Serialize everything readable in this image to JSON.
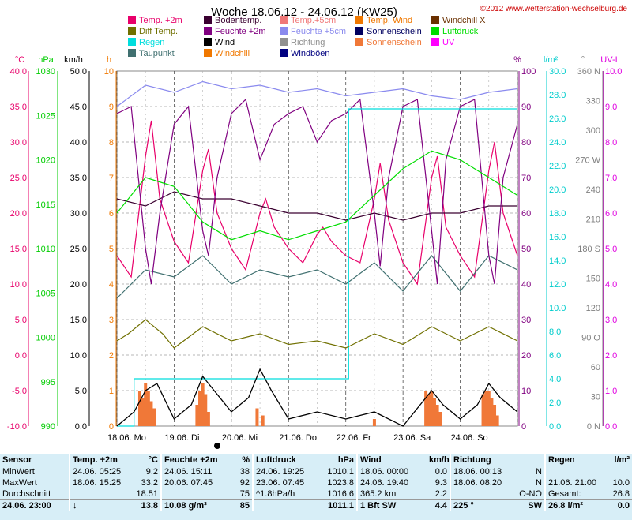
{
  "header": {
    "title": "Woche 18.06.12 - 24.06.12 (KW25)",
    "copyright": "©2012 www.wetterstation-wechselburg.de"
  },
  "legend": [
    {
      "label": "Temp. +2m",
      "color": "#e8006a"
    },
    {
      "label": "Bodentemp.",
      "color": "#3a0030"
    },
    {
      "label": "Temp.+5cm",
      "color": "#f07878"
    },
    {
      "label": "Temp. Wind",
      "color": "#f07800"
    },
    {
      "label": "Windchill X",
      "color": "#6a3000"
    },
    {
      "label": "Diff Temp.",
      "color": "#707000"
    },
    {
      "label": "Feuchte +2m",
      "color": "#800080"
    },
    {
      "label": "Feuchte +5cm",
      "color": "#8a8aee"
    },
    {
      "label": "Sonnenschein",
      "color": "#000060"
    },
    {
      "label": "Luftdruck",
      "color": "#00dd00"
    },
    {
      "label": "Regen",
      "color": "#00dddd"
    },
    {
      "label": "Wind",
      "color": "#000000"
    },
    {
      "label": "Richtung",
      "color": "#909090"
    },
    {
      "label": "Sonnenschein",
      "color": "#f07838"
    },
    {
      "label": "UV",
      "color": "#ff00ff"
    },
    {
      "label": "Taupunkt",
      "color": "#407070"
    },
    {
      "label": "Windchill",
      "color": "#f07800"
    },
    {
      "label": "Windböen",
      "color": "#000080"
    }
  ],
  "axis_units": {
    "temp": "°C",
    "pressure": "hPa",
    "wind": "km/h",
    "hours": "h",
    "humidity": "%",
    "rain": "l/m²",
    "direction": "°",
    "uv": "UV-I"
  },
  "colors": {
    "temp": "#e8006a",
    "pressure": "#00cc00",
    "wind": "#000000",
    "hours": "#f07800",
    "humidity": "#800080",
    "rain": "#00cccc",
    "direction": "#808080",
    "uv": "#e000e0",
    "grid": "#a0a0a0",
    "summary_bg": "#d7eef7"
  },
  "chart_data": {
    "type": "line",
    "x_axis": {
      "labels": [
        "18.06. Mo",
        "19.06. Di",
        "20.06. Mi",
        "21.06. Do",
        "22.06. Fr",
        "23.06. Sa",
        "24.06. So"
      ],
      "range": [
        0,
        7
      ]
    },
    "y_axes": {
      "temp": {
        "range": [
          -10,
          40
        ],
        "ticks": [
          "40.0",
          "35.0",
          "30.0",
          "25.0",
          "20.0",
          "15.0",
          "10.0",
          "5.0",
          "0.0",
          "-5.0",
          "-10.0"
        ]
      },
      "pressure": {
        "range": [
          990,
          1030
        ],
        "ticks": [
          "1030",
          "1025",
          "1020",
          "1015",
          "1010",
          "1005",
          "1000",
          "995",
          "990"
        ]
      },
      "wind": {
        "range": [
          0,
          50
        ],
        "ticks": [
          "50.0",
          "45.0",
          "40.0",
          "35.0",
          "30.0",
          "25.0",
          "20.0",
          "15.0",
          "10.0",
          "5.0",
          "0.0"
        ]
      },
      "hours": {
        "range": [
          0,
          10
        ],
        "ticks": [
          "10",
          "9",
          "8",
          "7",
          "6",
          "5",
          "4",
          "3",
          "2",
          "1",
          "0"
        ]
      },
      "humidity": {
        "range": [
          0,
          100
        ],
        "ticks": [
          "100",
          "90",
          "80",
          "70",
          "60",
          "50",
          "40",
          "30",
          "20",
          "10",
          "0"
        ]
      },
      "rain": {
        "range": [
          0,
          30
        ],
        "ticks": [
          "30.0",
          "28.0",
          "26.0",
          "24.0",
          "22.0",
          "20.0",
          "18.0",
          "16.0",
          "14.0",
          "12.0",
          "10.0",
          "8.0",
          "6.0",
          "4.0",
          "2.0",
          "0.0"
        ]
      },
      "direction": {
        "range": [
          0,
          360
        ],
        "ticks": [
          "360 N",
          "330",
          "300",
          "270 W",
          "240",
          "210",
          "180 S",
          "150",
          "120",
          "90 O",
          "60",
          "30",
          "0 N"
        ]
      },
      "uv": {
        "range": [
          0,
          10
        ],
        "ticks": [
          "10.0",
          "9.0",
          "8.0",
          "7.0",
          "6.0",
          "5.0",
          "4.0",
          "3.0",
          "2.0",
          "1.0",
          "0.0"
        ]
      }
    },
    "series": [
      {
        "name": "Temp. +2m",
        "axis": "temp",
        "color": "#e8006a",
        "x": [
          0,
          0.25,
          0.5,
          0.6,
          0.75,
          1,
          1.25,
          1.5,
          1.6,
          1.75,
          2,
          2.25,
          2.5,
          2.6,
          2.75,
          3,
          3.25,
          3.5,
          3.6,
          3.75,
          4,
          4.25,
          4.5,
          4.6,
          4.75,
          5,
          5.25,
          5.5,
          5.6,
          5.75,
          6,
          6.25,
          6.5,
          6.6,
          6.75,
          7
        ],
        "y": [
          14,
          11,
          28,
          33,
          22,
          16,
          13,
          26,
          29,
          20,
          15,
          12,
          20,
          22,
          18,
          15,
          13,
          17,
          18,
          16,
          14,
          13,
          22,
          27,
          19,
          13,
          10,
          25,
          28,
          18,
          14,
          11,
          26,
          30,
          20,
          14
        ]
      },
      {
        "name": "Taupunkt",
        "axis": "temp",
        "color": "#407070",
        "x": [
          0,
          0.5,
          1,
          1.5,
          2,
          2.5,
          3,
          3.5,
          4,
          4.5,
          5,
          5.5,
          6,
          6.5,
          7
        ],
        "y": [
          8,
          12,
          11,
          14,
          10,
          12,
          11,
          12,
          10,
          13,
          9,
          14,
          9,
          14,
          12
        ]
      },
      {
        "name": "Bodentemp.",
        "axis": "temp",
        "color": "#3a0030",
        "x": [
          0,
          0.5,
          1,
          1.5,
          2,
          2.5,
          3,
          3.5,
          4,
          4.5,
          5,
          5.5,
          6,
          6.5,
          7
        ],
        "y": [
          22,
          21,
          23,
          22,
          22,
          21,
          20,
          20,
          19,
          20,
          19,
          20,
          20,
          21,
          21
        ]
      },
      {
        "name": "Feuchte +2m",
        "axis": "humidity",
        "color": "#800080",
        "x": [
          0,
          0.25,
          0.5,
          0.6,
          0.75,
          1,
          1.25,
          1.5,
          1.6,
          1.75,
          2,
          2.25,
          2.5,
          2.75,
          3,
          3.25,
          3.5,
          3.75,
          4,
          4.25,
          4.5,
          4.6,
          4.75,
          5,
          5.25,
          5.5,
          5.6,
          5.75,
          6,
          6.25,
          6.5,
          6.6,
          6.75,
          7
        ],
        "y": [
          88,
          90,
          50,
          40,
          60,
          85,
          90,
          55,
          48,
          70,
          88,
          92,
          75,
          85,
          88,
          90,
          80,
          86,
          88,
          92,
          60,
          45,
          70,
          90,
          92,
          55,
          40,
          75,
          90,
          92,
          48,
          40,
          70,
          85
        ]
      },
      {
        "name": "Feuchte +5cm",
        "axis": "humidity",
        "color": "#8a8aee",
        "x": [
          0,
          0.5,
          1,
          1.5,
          2,
          2.5,
          3,
          3.5,
          4,
          4.5,
          5,
          5.5,
          6,
          6.5,
          7
        ],
        "y": [
          90,
          96,
          94,
          97,
          95,
          96,
          94,
          95,
          93,
          94,
          95,
          93,
          92,
          94,
          95
        ]
      },
      {
        "name": "Luftdruck",
        "axis": "pressure",
        "color": "#00dd00",
        "x": [
          0,
          0.5,
          1,
          1.5,
          2,
          2.5,
          3,
          3.5,
          4,
          4.5,
          5,
          5.5,
          6,
          6.5,
          7
        ],
        "y": [
          1014,
          1018,
          1017,
          1013,
          1011,
          1012,
          1011,
          1012,
          1013,
          1016,
          1019,
          1021,
          1020,
          1018,
          1016
        ]
      },
      {
        "name": "Regen",
        "axis": "rain",
        "color": "#00dddd",
        "x": [
          0,
          0.3,
          0.3,
          3.9,
          3.9,
          4.05,
          4.05,
          7
        ],
        "y": [
          0,
          0,
          4,
          4,
          4,
          4,
          26.8,
          26.8
        ]
      },
      {
        "name": "Diff Temp.",
        "axis": "temp",
        "color": "#707000",
        "x": [
          0,
          0.2,
          0.5,
          0.8,
          1,
          1.5,
          2,
          2.5,
          3,
          3.5,
          4,
          4.5,
          5,
          5.5,
          6,
          6.5,
          7
        ],
        "y": [
          2,
          3,
          5,
          3,
          1,
          4,
          2,
          3,
          1.5,
          2,
          1,
          3,
          1.5,
          4,
          2,
          4,
          2
        ]
      }
    ],
    "wind": {
      "axis": "wind",
      "color": "#000000",
      "x": [
        0,
        0.3,
        0.5,
        0.7,
        1,
        1.3,
        1.5,
        1.7,
        2,
        2.3,
        2.5,
        2.7,
        3,
        3.5,
        4,
        4.5,
        5,
        5.3,
        5.5,
        5.7,
        6,
        6.3,
        6.5,
        6.7,
        7
      ],
      "y": [
        0,
        2,
        5,
        6,
        1,
        3,
        7,
        5,
        2,
        4,
        8,
        5,
        1,
        2,
        1,
        2,
        0,
        3,
        5,
        3,
        1,
        3,
        6,
        4,
        2
      ]
    },
    "sunshine_bars": {
      "axis": "hours",
      "color": "#f07838",
      "x": [
        0.4,
        0.45,
        0.5,
        0.55,
        0.6,
        0.65,
        1.4,
        1.45,
        1.5,
        1.55,
        1.6,
        2.45,
        2.55,
        4.5,
        5.4,
        5.45,
        5.5,
        5.55,
        5.6,
        5.65,
        6.4,
        6.45,
        6.5,
        6.55,
        6.6,
        6.65
      ],
      "y": [
        1,
        0.8,
        1.2,
        1,
        0.7,
        0.5,
        0.6,
        1,
        1.2,
        0.9,
        0.4,
        0.5,
        0.3,
        0.2,
        1,
        0.9,
        1,
        0.8,
        0.6,
        0.4,
        0.9,
        1,
        1,
        0.8,
        0.6,
        0.3
      ]
    }
  },
  "summary": {
    "header": [
      "Sensor",
      "Temp. +2m",
      "°C",
      "Feuchte +2m",
      "%",
      "Luftdruck",
      "hPa",
      "Wind",
      "km/h",
      "Richtung",
      "",
      "Regen",
      "l/m²"
    ],
    "rows": [
      [
        "MinWert",
        "24.06.  05:25",
        "9.2",
        "24.06.  15:11",
        "38",
        "24.06.  19:25",
        "1010.1",
        "18.06.  00:00",
        "0.0",
        "18.06.  00:13",
        "N",
        "",
        ""
      ],
      [
        "MaxWert",
        "18.06.  15:25",
        "33.2",
        "20.06.  07:45",
        "92",
        "23.06.  07:45",
        "1023.8",
        "24.06.  19:40",
        "9.3",
        "18.06.  08:20",
        "N",
        "21.06.  21:00",
        "10.0"
      ],
      [
        "Durchschnitt",
        "",
        "18.51",
        "",
        "75",
        "^1.8hPa/h",
        "1016.6",
        "365.2 km",
        "2.2",
        "",
        "O-NO",
        "Gesamt:",
        "26.8"
      ],
      [
        "24.06. 23:00",
        "↓",
        "13.8",
        "10.08 g/m³",
        "85",
        "",
        "1011.1",
        "1 Bft SW",
        "4.4",
        "225 °",
        "SW",
        "26.8 l/m²",
        "0.0"
      ]
    ]
  }
}
